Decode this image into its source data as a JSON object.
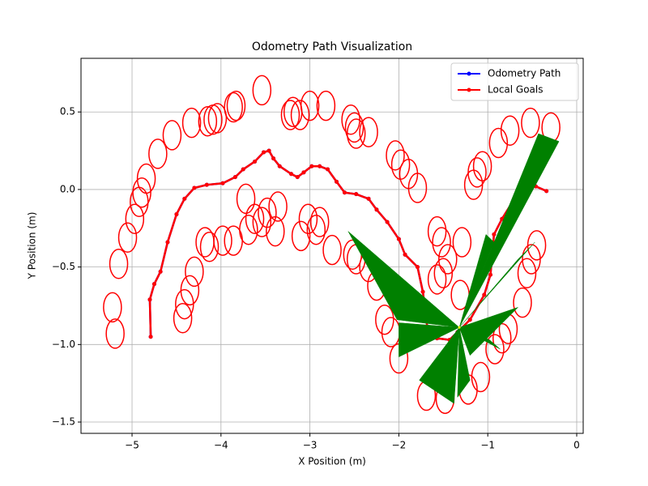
{
  "chart_data": {
    "type": "line",
    "title": "Odometry Path Visualization",
    "x_label": "X Position (m)",
    "y_label": "Y Position (m)",
    "xlim": [
      -5.574,
      0.073
    ],
    "ylim": [
      -1.573,
      0.846
    ],
    "xticks": [
      {
        "value": -5,
        "label": "−5"
      },
      {
        "value": -4,
        "label": "−4"
      },
      {
        "value": -3,
        "label": "−3"
      },
      {
        "value": -2,
        "label": "−2"
      },
      {
        "value": -1,
        "label": "−1"
      },
      0
    ],
    "yticks": [
      {
        "value": 0.5,
        "label": "0.5"
      },
      {
        "value": 0,
        "label": "0.0"
      },
      {
        "value": -0.5,
        "label": "−0.5"
      },
      {
        "value": -1,
        "label": "−1.0"
      },
      {
        "value": -1.5,
        "label": "−1.5"
      }
    ],
    "grid": true,
    "legend": "upper right",
    "series": [
      {
        "name": "Odometry Path",
        "color": "#0000ff",
        "x": [
          -4.79,
          -4.8,
          -4.75,
          -4.68,
          -4.6,
          -4.5,
          -4.41,
          -4.3,
          -4.16,
          -3.98,
          -3.84,
          -3.75,
          -3.62,
          -3.52,
          -3.46,
          -3.41,
          -3.34,
          -3.21,
          -3.14,
          -3.07,
          -2.98,
          -2.89,
          -2.8,
          -2.7,
          -2.61,
          -2.48,
          -2.34,
          -2.25,
          -2.13,
          -2.0,
          -1.93,
          -1.79,
          -1.73,
          -1.7,
          -1.68,
          -1.57,
          -1.43,
          -1.34,
          -1.2,
          -1.04,
          -0.97,
          -0.93,
          -0.84,
          -0.7,
          -0.56,
          -0.46,
          -0.34
        ],
        "values": [
          -0.95,
          -0.71,
          -0.61,
          -0.53,
          -0.34,
          -0.16,
          -0.06,
          0.01,
          0.03,
          0.04,
          0.08,
          0.13,
          0.18,
          0.24,
          0.25,
          0.2,
          0.15,
          0.1,
          0.08,
          0.11,
          0.15,
          0.15,
          0.13,
          0.05,
          -0.02,
          -0.03,
          -0.06,
          -0.13,
          -0.21,
          -0.32,
          -0.42,
          -0.5,
          -0.66,
          -0.79,
          -0.89,
          -0.96,
          -0.97,
          -0.92,
          -0.84,
          -0.68,
          -0.55,
          -0.29,
          -0.19,
          -0.06,
          0.01,
          0.02,
          -0.01
        ]
      },
      {
        "name": "Local Goals",
        "color": "#ff0000",
        "x": [
          -4.79,
          -4.8,
          -4.75,
          -4.68,
          -4.6,
          -4.5,
          -4.41,
          -4.3,
          -4.16,
          -3.98,
          -3.84,
          -3.75,
          -3.62,
          -3.52,
          -3.46,
          -3.41,
          -3.34,
          -3.21,
          -3.14,
          -3.07,
          -2.98,
          -2.89,
          -2.8,
          -2.7,
          -2.61,
          -2.48,
          -2.34,
          -2.25,
          -2.13,
          -2.0,
          -1.93,
          -1.79,
          -1.73,
          -1.7,
          -1.68,
          -1.57,
          -1.43,
          -1.34,
          -1.2,
          -1.04,
          -0.97,
          -0.93,
          -0.84,
          -0.7,
          -0.56,
          -0.46,
          -0.34
        ],
        "values": [
          -0.95,
          -0.71,
          -0.61,
          -0.53,
          -0.34,
          -0.16,
          -0.06,
          0.01,
          0.03,
          0.04,
          0.08,
          0.13,
          0.18,
          0.24,
          0.25,
          0.2,
          0.15,
          0.1,
          0.08,
          0.11,
          0.15,
          0.15,
          0.13,
          0.05,
          -0.02,
          -0.03,
          -0.06,
          -0.13,
          -0.21,
          -0.32,
          -0.42,
          -0.5,
          -0.66,
          -0.79,
          -0.89,
          -0.96,
          -0.97,
          -0.92,
          -0.84,
          -0.68,
          -0.55,
          -0.29,
          -0.19,
          -0.06,
          0.01,
          0.02,
          -0.01
        ]
      }
    ],
    "ellipses": {
      "color": "#ff0000",
      "x": [
        -5.19,
        -5.22,
        -5.15,
        -5.05,
        -4.97,
        -4.92,
        -4.89,
        -4.84,
        -4.71,
        -4.55,
        -4.33,
        -4.15,
        -4.09,
        -4.04,
        -3.86,
        -3.83,
        -3.54,
        -3.22,
        -3.19,
        -3.11,
        -3.0,
        -2.82,
        -2.54,
        -2.5,
        -2.48,
        -2.34,
        -2.04,
        -1.98,
        -1.89,
        -1.79,
        -1.16,
        -1.12,
        -1.06,
        -0.88,
        -0.75,
        -0.52,
        -0.29,
        -3.72,
        -3.62,
        -3.48,
        -3.36,
        -3.69,
        -3.54,
        -3.39,
        -3.1,
        -3.02,
        -2.93,
        -2.89,
        -2.75,
        -2.52,
        -2.48,
        -2.34,
        -2.25,
        -2.16,
        -2.09,
        -2.0,
        -1.69,
        -1.48,
        -1.22,
        -1.08,
        -0.92,
        -0.84,
        -0.77,
        -0.61,
        -0.56,
        -0.51,
        -0.45,
        -1.57,
        -1.52,
        -1.45,
        -1.5,
        -1.57,
        -1.29,
        -1.31,
        -3.98,
        -4.13,
        -4.18,
        -4.3,
        -4.35,
        -4.41,
        -4.43,
        -3.86
      ],
      "y": [
        -0.93,
        -0.76,
        -0.48,
        -0.31,
        -0.19,
        -0.08,
        -0.02,
        0.07,
        0.23,
        0.35,
        0.43,
        0.44,
        0.45,
        0.46,
        0.53,
        0.54,
        0.64,
        0.48,
        0.5,
        0.48,
        0.54,
        0.54,
        0.45,
        0.4,
        0.36,
        0.37,
        0.22,
        0.16,
        0.1,
        0.01,
        0.03,
        0.11,
        0.15,
        0.3,
        0.38,
        0.43,
        0.4,
        -0.06,
        -0.19,
        -0.15,
        -0.11,
        -0.26,
        -0.21,
        -0.27,
        -0.3,
        -0.19,
        -0.26,
        -0.21,
        -0.39,
        -0.42,
        -0.45,
        -0.5,
        -0.62,
        -0.84,
        -0.92,
        -1.09,
        -1.33,
        -1.35,
        -1.29,
        -1.21,
        -1.03,
        -0.96,
        -0.9,
        -0.73,
        -0.54,
        -0.45,
        -0.36,
        -0.27,
        -0.34,
        -0.45,
        -0.54,
        -0.58,
        -0.34,
        -0.68,
        -0.33,
        -0.37,
        -0.34,
        -0.53,
        -0.65,
        -0.74,
        -0.83,
        -0.33
      ]
    },
    "fans": {
      "color": "#008000",
      "origin": [
        -1.32,
        -0.89
      ],
      "edges": [
        [
          [
            -2.57,
            -0.27
          ],
          [
            -2.02,
            -0.84
          ]
        ],
        [
          [
            -2.0,
            -0.86
          ],
          [
            -2.0,
            -1.08
          ]
        ],
        [
          [
            -1.77,
            -1.23
          ],
          [
            -1.38,
            -1.38
          ]
        ],
        [
          [
            -1.34,
            -1.34
          ],
          [
            -1.2,
            -1.23
          ]
        ],
        [
          [
            -1.2,
            -1.07
          ],
          [
            -0.66,
            -0.76
          ]
        ],
        [
          [
            -0.66,
            -0.45
          ],
          [
            -0.47,
            -0.34
          ]
        ],
        [
          [
            -0.43,
            0.36
          ],
          [
            -0.2,
            0.31
          ]
        ],
        [
          [
            -0.98,
            -0.97
          ],
          [
            -0.86,
            -1.03
          ]
        ],
        [
          [
            -1.02,
            -0.29
          ],
          [
            -0.93,
            -0.34
          ]
        ]
      ]
    }
  }
}
